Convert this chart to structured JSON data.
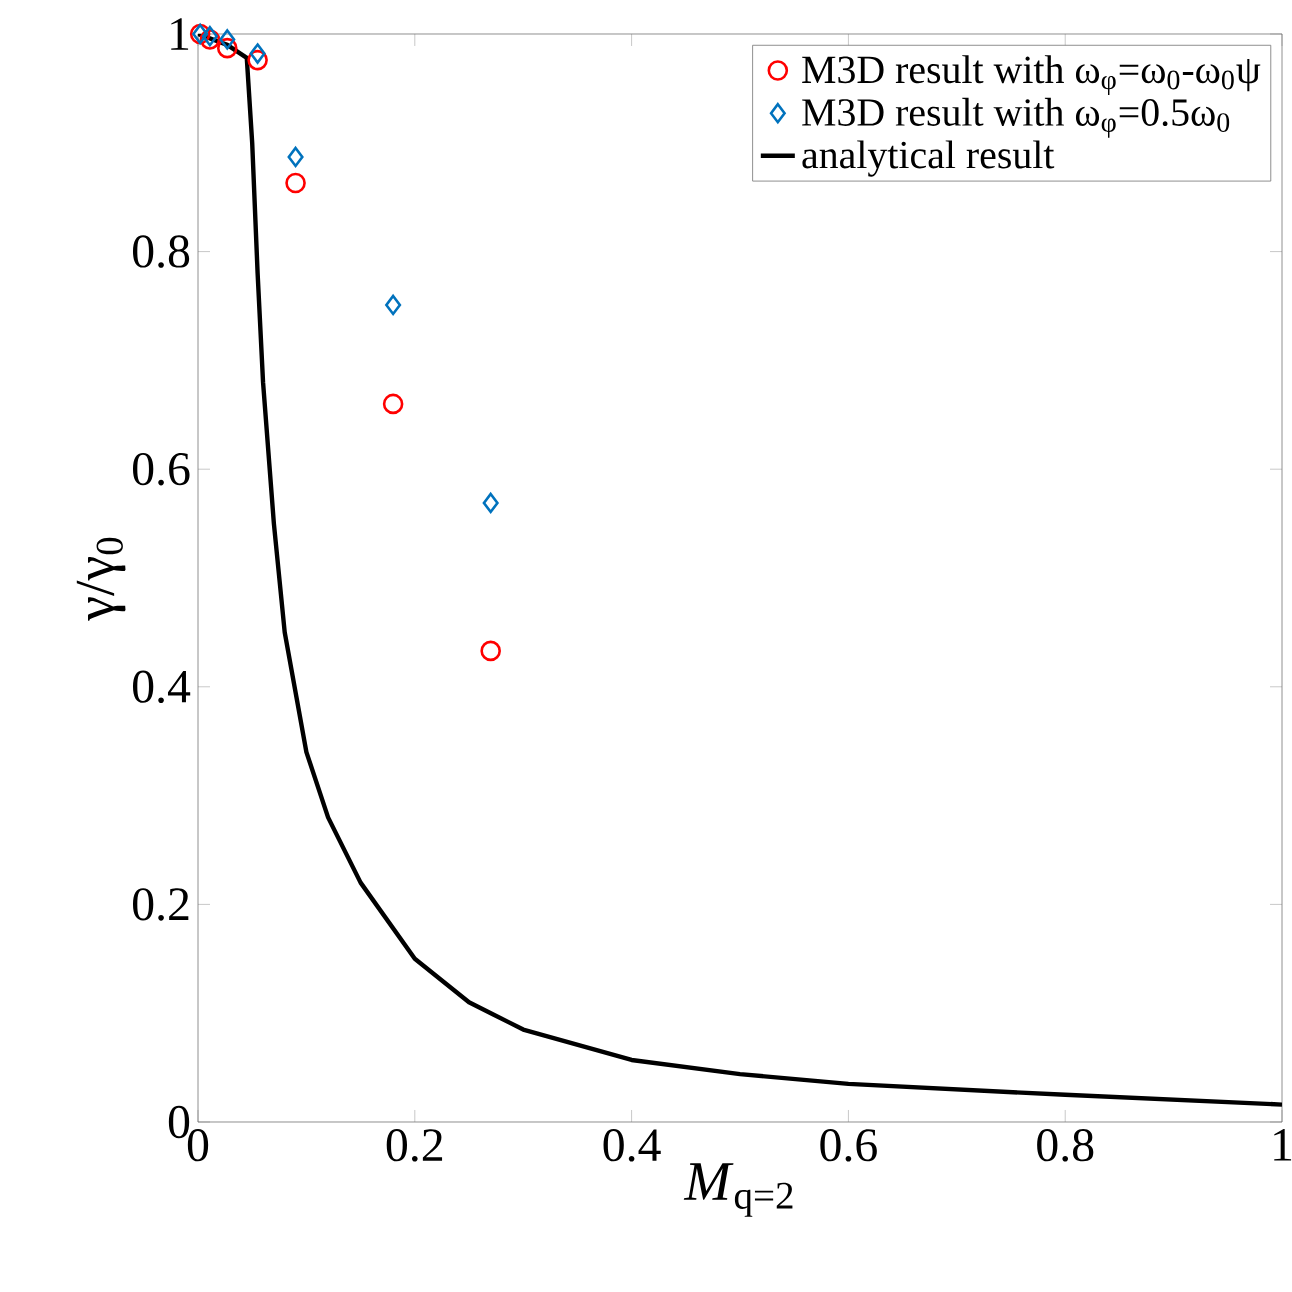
{
  "chart_data": {
    "type": "scatter",
    "xlabel": "*M*$_{q=2}$",
    "ylabel": "γ/γ$_{0}$",
    "xlim": [
      0,
      1
    ],
    "ylim": [
      0,
      1
    ],
    "xticks": [
      0,
      0.2,
      0.4,
      0.6,
      0.8,
      1
    ],
    "yticks": [
      0,
      0.2,
      0.4,
      0.6,
      0.8,
      1
    ],
    "grid": false,
    "legend": "top right",
    "series": [
      {
        "name": "M3D result with ω$_{φ}$=ω$_{0}$-ω$_{0}$ψ",
        "marker": "circle",
        "color": "#ff0000",
        "x": [
          0.002,
          0.011,
          0.027,
          0.055,
          0.09,
          0.18,
          0.27
        ],
        "values": [
          1.0,
          0.995,
          0.987,
          0.976,
          0.863,
          0.66,
          0.433
        ]
      },
      {
        "name": "M3D result with ω$_{φ}$=0.5ω$_{0}$",
        "marker": "diamond",
        "color": "#0072bd",
        "x": [
          0.002,
          0.011,
          0.027,
          0.055,
          0.09,
          0.18,
          0.27
        ],
        "values": [
          1.0,
          0.998,
          0.995,
          0.982,
          0.887,
          0.751,
          0.569
        ]
      },
      {
        "name": "analytical result",
        "type": "line",
        "marker": "none",
        "line_style": "solid",
        "color": "#000000",
        "x": [
          0,
          0.027,
          0.045,
          0.05,
          0.055,
          0.06,
          0.07,
          0.08,
          0.1,
          0.12,
          0.15,
          0.2,
          0.25,
          0.3,
          0.4,
          0.5,
          0.6,
          0.8,
          1.0
        ],
        "values": [
          1.0,
          0.99,
          0.978,
          0.9,
          0.78,
          0.68,
          0.55,
          0.45,
          0.34,
          0.28,
          0.22,
          0.15,
          0.11,
          0.085,
          0.057,
          0.044,
          0.035,
          0.025,
          0.016
        ]
      }
    ]
  }
}
